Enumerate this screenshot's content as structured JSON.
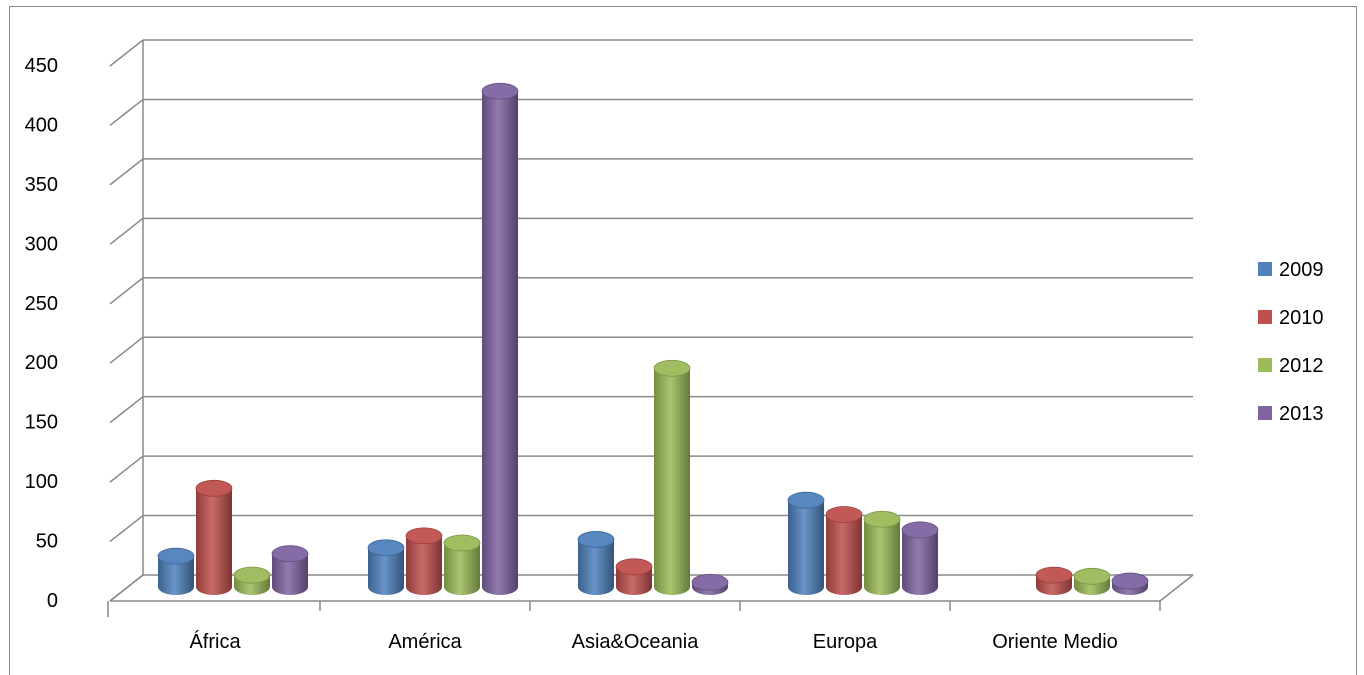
{
  "chart_data": {
    "type": "bar",
    "title": "",
    "xlabel": "",
    "ylabel": "",
    "categories": [
      "África",
      "América",
      "Asia&Oceania",
      "Europa",
      "Oriente Medio"
    ],
    "series": [
      {
        "name": "2009",
        "color": "#4F81BD",
        "values": [
          26,
          33,
          40,
          73,
          0
        ]
      },
      {
        "name": "2010",
        "color": "#C0504D",
        "values": [
          83,
          43,
          17,
          61,
          10
        ]
      },
      {
        "name": "2012",
        "color": "#9BBB59",
        "values": [
          10,
          37,
          184,
          57,
          9
        ]
      },
      {
        "name": "2013",
        "color": "#8064A2",
        "values": [
          28,
          417,
          4,
          48,
          5
        ]
      }
    ],
    "ylim": [
      0,
      450
    ],
    "yticks": [
      "0",
      "50",
      "100",
      "150",
      "200",
      "250",
      "300",
      "350",
      "400",
      "450"
    ],
    "grid": true,
    "legend_position": "right"
  }
}
